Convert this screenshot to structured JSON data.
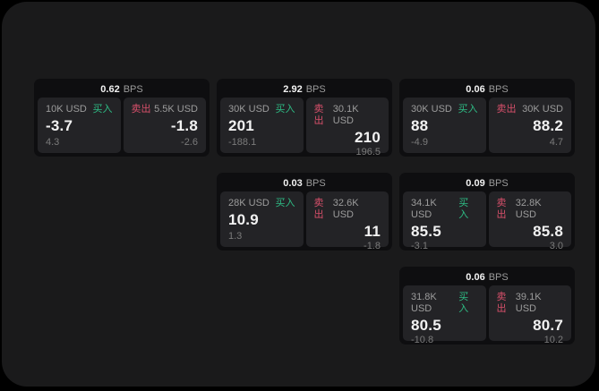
{
  "colors": {
    "page_bg": "#000000",
    "panel_bg": "#1a1a1b",
    "card_bg": "#0e0e10",
    "cell_bg": "#232326",
    "text_primary": "#f2f2f2",
    "text_secondary": "#9c9c9c",
    "text_muted": "#7b7b7b",
    "buy_green": "#2ebd85",
    "sell_red": "#d8506b"
  },
  "labels": {
    "bps_unit": "BPS",
    "buy": "买入",
    "sell": "卖出"
  },
  "cards": [
    {
      "spread_bps": "0.62",
      "buy": {
        "amount": "10K USD",
        "price": "-3.7",
        "delta": "4.3"
      },
      "sell": {
        "amount": "5.5K USD",
        "price": "-1.8",
        "delta": "-2.6"
      }
    },
    {
      "spread_bps": "2.92",
      "buy": {
        "amount": "30K USD",
        "price": "201",
        "delta": "-188.1"
      },
      "sell": {
        "amount": "30.1K USD",
        "price": "210",
        "delta": "196.5"
      }
    },
    {
      "spread_bps": "0.06",
      "buy": {
        "amount": "30K USD",
        "price": "88",
        "delta": "-4.9"
      },
      "sell": {
        "amount": "30K USD",
        "price": "88.2",
        "delta": "4.7"
      }
    },
    {
      "spread_bps": "0.03",
      "buy": {
        "amount": "28K USD",
        "price": "10.9",
        "delta": "1.3"
      },
      "sell": {
        "amount": "32.6K USD",
        "price": "11",
        "delta": "-1.8"
      }
    },
    {
      "spread_bps": "0.09",
      "buy": {
        "amount": "34.1K USD",
        "price": "85.5",
        "delta": "-3.1"
      },
      "sell": {
        "amount": "32.8K USD",
        "price": "85.8",
        "delta": "3.0"
      }
    },
    {
      "spread_bps": "0.06",
      "buy": {
        "amount": "31.8K USD",
        "price": "80.5",
        "delta": "-10.8"
      },
      "sell": {
        "amount": "39.1K USD",
        "price": "80.7",
        "delta": "10.2"
      }
    }
  ]
}
